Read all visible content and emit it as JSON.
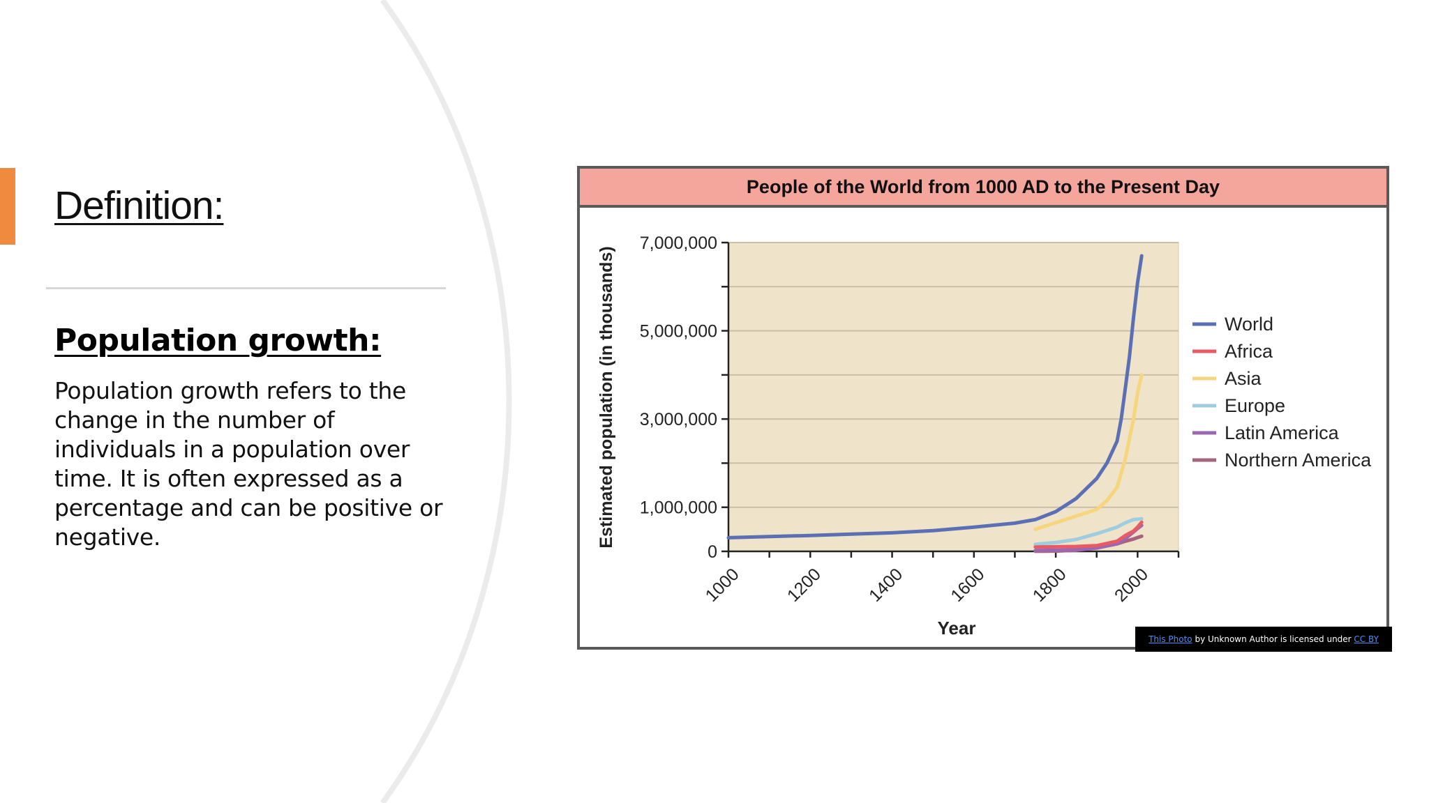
{
  "slide": {
    "title": "Definition:",
    "heading": "Population growth:",
    "body": "Population growth refers to the change in the number of individuals in a population over time. It is often expressed as a percentage and can be positive or negative."
  },
  "colors": {
    "accent": "#ef8a3e",
    "chart_header": "#f4a69d",
    "plot_background": "#efe3c9"
  },
  "attribution": {
    "photo_link": "This Photo",
    "middle_text": " by Unknown Author is licensed under ",
    "license_link": "CC BY"
  },
  "chart_data": {
    "type": "line",
    "title": "People of the World from 1000 AD to the Present Day",
    "xlabel": "Year",
    "ylabel": "Estimated population (in thousands)",
    "xlim": [
      1000,
      2100
    ],
    "ylim": [
      0,
      7000000
    ],
    "x_ticks": [
      1000,
      1200,
      1400,
      1600,
      1800,
      2000
    ],
    "y_ticks": [
      0,
      1000000,
      3000000,
      5000000,
      7000000
    ],
    "y_tick_labels": [
      "0",
      "1,000,000",
      "3,000,000",
      "5,000,000",
      "7,000,000"
    ],
    "grid": true,
    "legend_position": "right",
    "series": [
      {
        "name": "World",
        "color": "#5b6fb5",
        "x": [
          1000,
          1100,
          1200,
          1300,
          1400,
          1500,
          1600,
          1700,
          1750,
          1800,
          1850,
          1900,
          1925,
          1950,
          1960,
          1970,
          1980,
          1990,
          2000,
          2010
        ],
        "y": [
          310000,
          335000,
          360000,
          390000,
          420000,
          470000,
          550000,
          640000,
          720000,
          900000,
          1200000,
          1650000,
          2000000,
          2500000,
          3000000,
          3700000,
          4400000,
          5300000,
          6100000,
          6700000
        ]
      },
      {
        "name": "Africa",
        "color": "#e95b64",
        "x": [
          1750,
          1800,
          1850,
          1900,
          1950,
          1970,
          1990,
          2000,
          2010
        ],
        "y": [
          100000,
          105000,
          110000,
          130000,
          230000,
          360000,
          460000,
          550000,
          660000
        ]
      },
      {
        "name": "Asia",
        "color": "#f6d57c",
        "x": [
          1750,
          1800,
          1850,
          1900,
          1925,
          1950,
          1970,
          1990,
          2000,
          2010
        ],
        "y": [
          500000,
          650000,
          800000,
          950000,
          1150000,
          1450000,
          2100000,
          3000000,
          3600000,
          4000000
        ]
      },
      {
        "name": "Europe",
        "color": "#9fcde0",
        "x": [
          1750,
          1800,
          1850,
          1900,
          1950,
          1970,
          1990,
          2000,
          2010
        ],
        "y": [
          160000,
          200000,
          270000,
          400000,
          550000,
          650000,
          720000,
          730000,
          740000
        ]
      },
      {
        "name": "Latin America",
        "color": "#9b67b3",
        "x": [
          1750,
          1800,
          1850,
          1900,
          1950,
          1970,
          1990,
          2000,
          2010
        ],
        "y": [
          20000,
          25000,
          40000,
          75000,
          170000,
          290000,
          440000,
          520000,
          590000
        ]
      },
      {
        "name": "Northern America",
        "color": "#a8627c",
        "x": [
          1750,
          1800,
          1850,
          1900,
          1950,
          1970,
          1990,
          2000,
          2010
        ],
        "y": [
          2000,
          7000,
          26000,
          82000,
          170000,
          230000,
          280000,
          315000,
          345000
        ]
      }
    ]
  }
}
